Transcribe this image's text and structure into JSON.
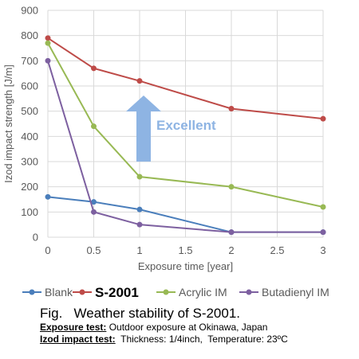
{
  "chart_data": {
    "type": "line",
    "xlabel": "Exposure time [year]",
    "ylabel": "Izod impact strength [J/m]",
    "xlim": [
      0,
      3
    ],
    "ylim": [
      0,
      900
    ],
    "x_ticks": [
      "0",
      "0.5",
      "1",
      "1.5",
      "2",
      "2.5",
      "3"
    ],
    "y_ticks": [
      "0",
      "100",
      "200",
      "300",
      "400",
      "500",
      "600",
      "700",
      "800",
      "900"
    ],
    "grid": true,
    "legend_position": "bottom",
    "series": [
      {
        "name": "Blank",
        "color": "#4a7ebb",
        "bold": false,
        "x": [
          0,
          0.5,
          1,
          2,
          3
        ],
        "values": [
          160,
          140,
          110,
          20,
          20
        ]
      },
      {
        "name": "S-2001",
        "color": "#be4b48",
        "bold": true,
        "x": [
          0,
          0.5,
          1,
          2,
          3
        ],
        "values": [
          790,
          670,
          620,
          510,
          470
        ]
      },
      {
        "name": "Acrylic IM",
        "color": "#98b954",
        "bold": false,
        "x": [
          0,
          0.5,
          1,
          2,
          3
        ],
        "values": [
          770,
          440,
          240,
          200,
          120
        ]
      },
      {
        "name": "Butadienyl IM",
        "color": "#7d60a0",
        "bold": false,
        "x": [
          0,
          0.5,
          1,
          2,
          3
        ],
        "values": [
          700,
          100,
          50,
          20,
          20
        ]
      }
    ],
    "annotation": {
      "text": "Excellent",
      "color": "#8eb4e3"
    }
  },
  "caption": {
    "title": "Fig.   Weather stability of S-2001.",
    "exposure_label": "Exposure test:",
    "exposure_text": " Outdoor exposure at Okinawa, Japan",
    "izod_label": "Izod impact test:",
    "izod_text": "  Thickness: 1/4inch,  Temperature: 23ºC"
  }
}
